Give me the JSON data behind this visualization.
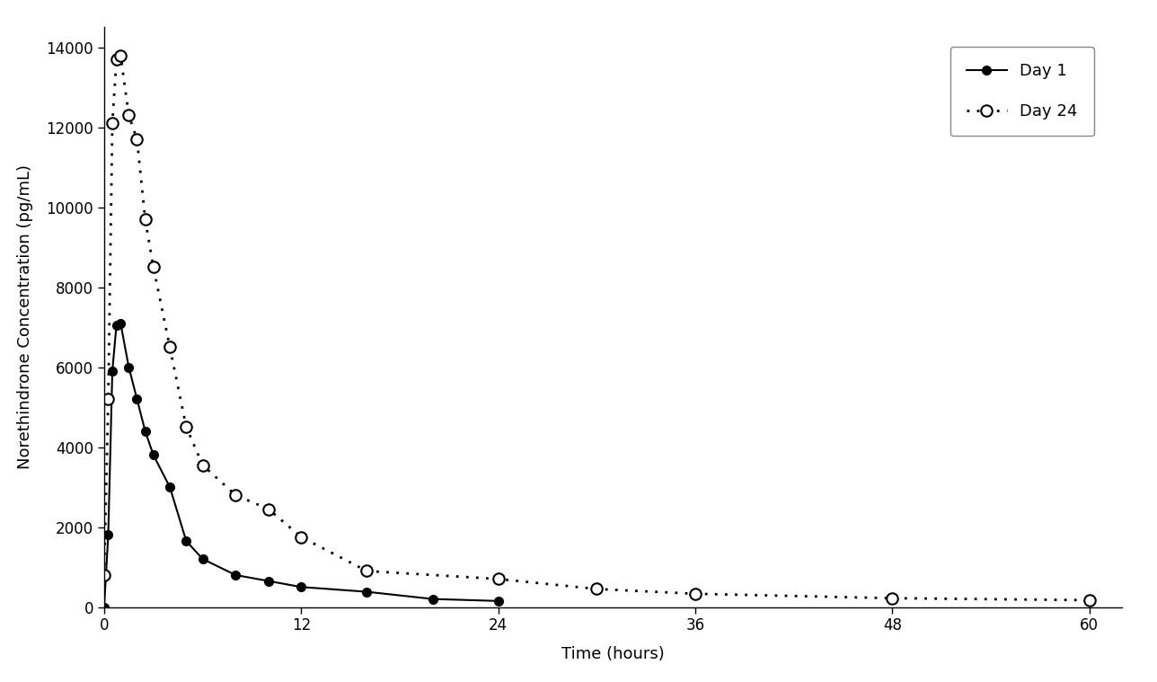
{
  "day1_time": [
    0,
    0.25,
    0.5,
    0.75,
    1.0,
    1.5,
    2.0,
    2.5,
    3.0,
    4.0,
    5.0,
    6.0,
    8.0,
    10.0,
    12.0,
    16.0,
    20.0,
    24.0
  ],
  "day1_conc": [
    0,
    1800,
    5900,
    7050,
    7100,
    6000,
    5200,
    4400,
    3800,
    3000,
    1650,
    1200,
    800,
    650,
    500,
    380,
    200,
    150
  ],
  "day24_time": [
    0,
    0.25,
    0.5,
    0.75,
    1.0,
    1.5,
    2.0,
    2.5,
    3.0,
    4.0,
    5.0,
    6.0,
    8.0,
    10.0,
    12.0,
    16.0,
    24.0,
    30.0,
    36.0,
    48.0,
    60.0
  ],
  "day24_conc": [
    800,
    5200,
    12100,
    13700,
    13800,
    12300,
    11700,
    9700,
    8500,
    6500,
    4500,
    3550,
    2800,
    2450,
    1750,
    900,
    700,
    450,
    330,
    220,
    170
  ],
  "xlabel": "Time (hours)",
  "ylabel": "Norethindrone Concentration (pg/mL)",
  "xlim": [
    0,
    62
  ],
  "ylim": [
    0,
    14500
  ],
  "xticks": [
    0,
    12,
    24,
    36,
    48,
    60
  ],
  "yticks": [
    0,
    2000,
    4000,
    6000,
    8000,
    10000,
    12000,
    14000
  ],
  "legend_day1": "Day 1",
  "legend_day24": "Day 24",
  "line_color": "#000000",
  "background_color": "#ffffff"
}
